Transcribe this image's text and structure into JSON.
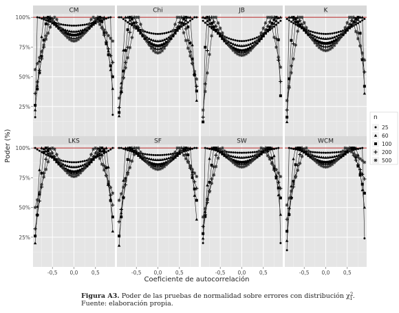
{
  "chart_data": {
    "type": "line",
    "facets": [
      "CM",
      "Chi",
      "JB",
      "K",
      "LKS",
      "SF",
      "SW",
      "WCM"
    ],
    "xlabel": "Coeficiente de autocorrelación",
    "ylabel": "Poder (%)",
    "xticks": [
      -0.5,
      0.0,
      0.5
    ],
    "xtick_labels": [
      "-0,5",
      "0,0",
      "0,5"
    ],
    "xlim": [
      -0.95,
      0.95
    ],
    "ylim": [
      0,
      103
    ],
    "yticks": [
      25,
      50,
      75,
      100
    ],
    "ytick_labels": [
      "25%",
      "50%",
      "75%",
      "100%"
    ],
    "reference_line": 100,
    "reference_color": "#b22222",
    "grid": true,
    "legend": {
      "title": "n",
      "position": "right",
      "entries": [
        {
          "label": "25",
          "marker": "circle"
        },
        {
          "label": "60",
          "marker": "triangle"
        },
        {
          "label": "100",
          "marker": "square"
        },
        {
          "label": "200",
          "marker": "plus"
        },
        {
          "label": "500",
          "marker": "star"
        }
      ]
    },
    "x": [
      -0.9,
      -0.85,
      -0.8,
      -0.75,
      -0.7,
      -0.65,
      -0.6,
      -0.55,
      -0.5,
      -0.45,
      -0.4,
      -0.35,
      -0.3,
      -0.25,
      -0.2,
      -0.15,
      -0.1,
      -0.05,
      0.0,
      0.05,
      0.1,
      0.15,
      0.2,
      0.25,
      0.3,
      0.35,
      0.4,
      0.45,
      0.5,
      0.55,
      0.6,
      0.65,
      0.7,
      0.75,
      0.8,
      0.85,
      0.9
    ],
    "panels": [
      {
        "name": "CM",
        "min": [
          93,
          88,
          85,
          82,
          80
        ],
        "left": [
          0.82,
          0.66,
          0.58,
          0.52,
          0.42
        ],
        "right": [
          0.76,
          0.62,
          0.55,
          0.48,
          0.4
        ],
        "lo": [
          16,
          22,
          26,
          36,
          56
        ],
        "ro": [
          18,
          40,
          50,
          62,
          80
        ]
      },
      {
        "name": "Chi",
        "min": [
          86,
          80,
          76,
          73,
          70
        ],
        "left": [
          0.85,
          0.7,
          0.62,
          0.55,
          0.45
        ],
        "right": [
          0.8,
          0.66,
          0.58,
          0.5,
          0.42
        ],
        "lo": [
          14,
          17,
          20,
          24,
          32
        ],
        "ro": [
          17,
          30,
          38,
          42,
          48
        ]
      },
      {
        "name": "JB",
        "min": [
          80,
          76,
          72,
          70,
          68
        ],
        "left": [
          0.98,
          0.86,
          0.78,
          0.7,
          0.6
        ],
        "right": [
          0.92,
          0.8,
          0.72,
          0.64,
          0.56
        ],
        "lo": [
          4,
          8,
          12,
          16,
          22
        ],
        "ro": [
          10,
          24,
          34,
          46,
          58
        ]
      },
      {
        "name": "K",
        "min": [
          86,
          82,
          78,
          75,
          72
        ],
        "left": [
          0.95,
          0.8,
          0.72,
          0.64,
          0.55
        ],
        "right": [
          0.9,
          0.76,
          0.68,
          0.6,
          0.52
        ],
        "lo": [
          6,
          12,
          16,
          22,
          30
        ],
        "ro": [
          28,
          36,
          42,
          54,
          64
        ]
      },
      {
        "name": "LKS",
        "min": [
          88,
          84,
          80,
          78,
          76
        ],
        "left": [
          0.9,
          0.72,
          0.64,
          0.56,
          0.46
        ],
        "right": [
          0.78,
          0.64,
          0.56,
          0.48,
          0.4
        ],
        "lo": [
          11,
          20,
          26,
          32,
          50
        ],
        "ro": [
          15,
          30,
          42,
          52,
          62
        ]
      },
      {
        "name": "SF",
        "min": [
          94,
          90,
          86,
          84,
          82
        ],
        "left": [
          0.85,
          0.7,
          0.62,
          0.55,
          0.45
        ],
        "right": [
          0.75,
          0.62,
          0.54,
          0.46,
          0.38
        ],
        "lo": [
          12,
          18,
          26,
          38,
          56
        ],
        "ro": [
          12,
          40,
          56,
          66,
          76
        ]
      },
      {
        "name": "SW",
        "min": [
          96,
          92,
          88,
          86,
          84
        ],
        "left": [
          0.84,
          0.68,
          0.6,
          0.52,
          0.44
        ],
        "right": [
          0.74,
          0.6,
          0.52,
          0.44,
          0.38
        ],
        "lo": [
          20,
          24,
          28,
          34,
          42
        ],
        "ro": [
          20,
          44,
          58,
          66,
          76
        ]
      },
      {
        "name": "WCM",
        "min": [
          96,
          92,
          88,
          86,
          84
        ],
        "left": [
          0.84,
          0.68,
          0.6,
          0.52,
          0.44
        ],
        "right": [
          0.76,
          0.62,
          0.54,
          0.46,
          0.38
        ],
        "lo": [
          14,
          22,
          30,
          40,
          52
        ],
        "ro": [
          24,
          50,
          62,
          74,
          88
        ]
      }
    ]
  },
  "caption": {
    "label": "Figura A3.",
    "text": "Poder de las pruebas de normalidad sobre errores con distribución χ",
    "source": "Fuente: elaboración propia."
  }
}
